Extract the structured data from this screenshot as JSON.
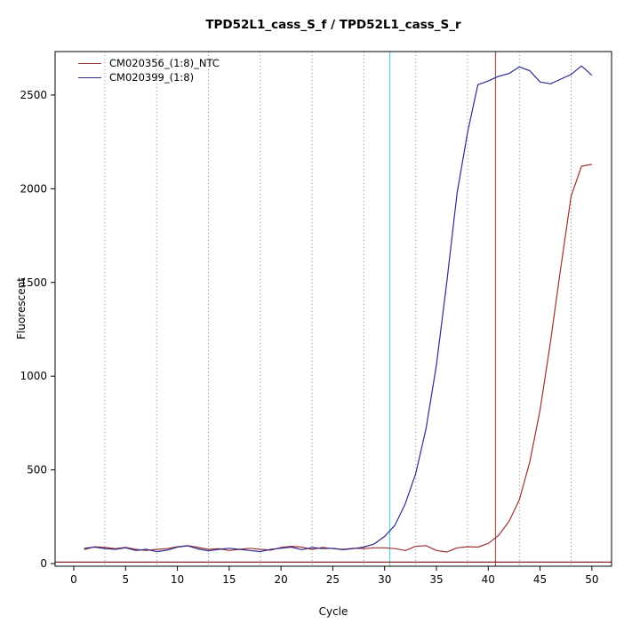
{
  "title": "TPD52L1_cass_S_f / TPD52L1_cass_S_r",
  "xlabel": "Cycle",
  "ylabel": "Fluorescent",
  "chart_data": {
    "type": "line",
    "title": "TPD52L1_cass_S_f / TPD52L1_cass_S_r",
    "xlabel": "Cycle",
    "ylabel": "Fluorescent",
    "xlim": [
      -1.8,
      51.9
    ],
    "ylim": [
      -14,
      2732
    ],
    "x_ticks": [
      0,
      5,
      10,
      15,
      20,
      25,
      30,
      35,
      40,
      45,
      50
    ],
    "y_ticks": [
      0,
      500,
      1000,
      1500,
      2000,
      2500
    ],
    "grid_x": [
      3,
      8,
      13,
      18,
      23,
      28,
      33,
      38,
      43,
      48
    ],
    "grid_color": "#808080",
    "x": [
      1,
      2,
      3,
      4,
      5,
      6,
      7,
      8,
      9,
      10,
      11,
      12,
      13,
      14,
      15,
      16,
      17,
      18,
      19,
      20,
      21,
      22,
      23,
      24,
      25,
      26,
      27,
      28,
      29,
      30,
      31,
      32,
      33,
      34,
      35,
      36,
      37,
      38,
      39,
      40,
      41,
      42,
      43,
      44,
      45,
      46,
      47,
      48,
      49,
      50
    ],
    "series": [
      {
        "name": "CM020356_(1:8)_NTC",
        "color": "#9e3232",
        "values": [
          74,
          90,
          86,
          80,
          86,
          76,
          70,
          76,
          80,
          90,
          96,
          86,
          76,
          80,
          70,
          76,
          82,
          76,
          72,
          86,
          92,
          88,
          76,
          86,
          80,
          76,
          82,
          80,
          84,
          84,
          80,
          70,
          92,
          96,
          70,
          62,
          84,
          90,
          88,
          108,
          150,
          225,
          340,
          540,
          820,
          1180,
          1580,
          1960,
          2120,
          2130
        ]
      },
      {
        "name": "CM020399_(1:8)",
        "color": "#2d2d8f",
        "values": [
          82,
          88,
          80,
          76,
          84,
          70,
          76,
          64,
          72,
          88,
          95,
          78,
          68,
          76,
          82,
          76,
          70,
          64,
          76,
          82,
          88,
          74,
          86,
          80,
          82,
          74,
          80,
          88,
          105,
          145,
          205,
          320,
          480,
          720,
          1060,
          1500,
          1980,
          2300,
          2555,
          2575,
          2600,
          2615,
          2650,
          2630,
          2570,
          2560,
          2585,
          2610,
          2655,
          2605
        ]
      }
    ],
    "vlines": [
      {
        "x": 30.5,
        "color": "#55d0ea",
        "meaning": "ct-line-sample"
      },
      {
        "x": 40.7,
        "color": "#b05555",
        "meaning": "ct-line-ntc"
      }
    ],
    "hline": {
      "y": 8,
      "color": "#8b2323",
      "meaning": "threshold-line"
    },
    "legend_position": "top-left",
    "grid": "vertical-dotted"
  }
}
